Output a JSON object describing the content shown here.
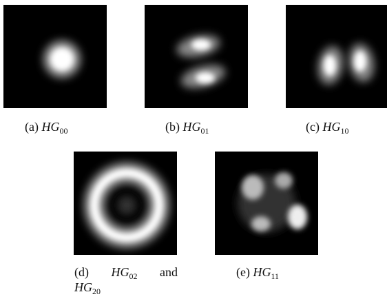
{
  "figure": {
    "panels": [
      {
        "label": "(a)",
        "symbol": "HG",
        "sub": "00"
      },
      {
        "label": "(b)",
        "symbol": "HG",
        "sub": "01"
      },
      {
        "label": "(c)",
        "symbol": "HG",
        "sub": "10"
      },
      {
        "label": "(d)",
        "symbol": "HG",
        "sub": "02",
        "joiner": "and",
        "symbol2": "HG",
        "sub2": "20"
      },
      {
        "label": "(e)",
        "symbol": "HG",
        "sub": "11"
      }
    ]
  }
}
